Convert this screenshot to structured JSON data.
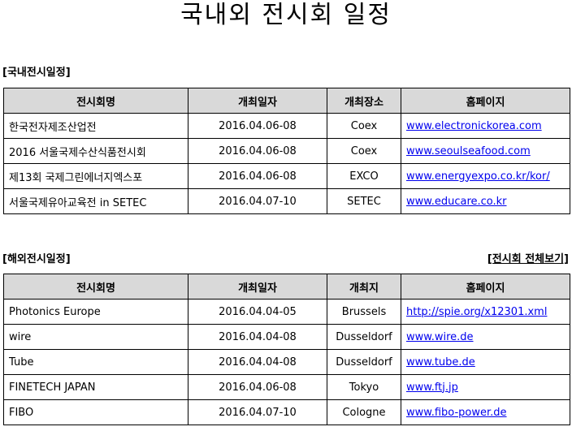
{
  "title": "국내외 전시회 일정",
  "domestic": {
    "label": "[국내전시일정]",
    "headers": [
      "전시회명",
      "개최일자",
      "개최장소",
      "홈페이지"
    ],
    "rows": [
      [
        "한국전자제조산업전",
        "2016.04.06-08",
        "Coex",
        "www.electronickorea.com"
      ],
      [
        "2016 서울국제수산식품전시회",
        "2016.04.06-08",
        "Coex",
        "www.seoulseafood.com"
      ],
      [
        "제13회 국제그린에너지엑스포",
        "2016.04.06-08",
        "EXCO",
        "www.energyexpo.co.kr/kor/"
      ],
      [
        "서울국제유아교육전 in SETEC",
        "2016.04.07-10",
        "SETEC",
        "www.educare.co.kr"
      ]
    ]
  },
  "overseas": {
    "label": "[해외전시일정]",
    "view_all": "[전시회 전체보기]",
    "headers": [
      "전시회명",
      "개최일자",
      "개최지",
      "홈페이지"
    ],
    "rows": [
      [
        "Photonics Europe",
        "2016.04.04-05",
        "Brussels",
        "http://spie.org/x12301.xml"
      ],
      [
        "wire",
        "2016.04.04-08",
        "Dusseldorf",
        "www.wire.de"
      ],
      [
        "Tube",
        "2016.04.04-08",
        "Dusseldorf",
        "www.tube.de"
      ],
      [
        "FINETECH JAPAN",
        "2016.04.06-08",
        "Tokyo",
        "www.ftj.jp"
      ],
      [
        "FIBO",
        "2016.04.07-10",
        "Cologne",
        "www.fibo-power.de"
      ]
    ]
  },
  "colors": {
    "header_bg": "#d9d9d9",
    "link": "#0000ee"
  }
}
